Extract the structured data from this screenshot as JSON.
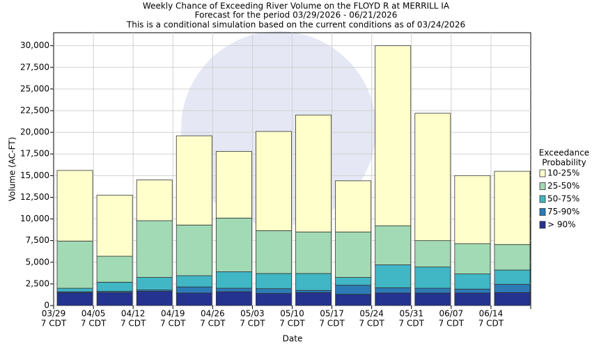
{
  "chart_data": {
    "type": "stacked_bar",
    "title": [
      "Weekly Chance of Exceeding River Volume on the FLOYD R at MERRILL IA",
      "Forecast for the period 03/29/2026 - 06/21/2026",
      "This is a conditional simulation based on the current conditions as of 03/24/2026"
    ],
    "x_label": "Date",
    "y_label": "Volume (AC-FT)",
    "categories": [
      "03/29",
      "04/05",
      "04/12",
      "04/19",
      "04/26",
      "05/03",
      "05/10",
      "05/17",
      "05/24",
      "05/31",
      "06/07",
      "06/14"
    ],
    "x_tick_sublabel": "7 CDT",
    "legend_title": [
      "Exceedance",
      "Probability"
    ],
    "series": [
      {
        "name": "> 90%",
        "color": "#24338f",
        "values": [
          1500,
          1500,
          1650,
          1450,
          1600,
          1400,
          1500,
          1300,
          1450,
          1450,
          1450,
          1500
        ]
      },
      {
        "name": "75-90%",
        "color": "#2c7bb6",
        "values": [
          100,
          150,
          150,
          700,
          400,
          550,
          250,
          1050,
          600,
          550,
          450,
          950
        ]
      },
      {
        "name": "50-75%",
        "color": "#41b6c4",
        "values": [
          400,
          1050,
          1450,
          1300,
          1900,
          1750,
          1950,
          900,
          2650,
          2450,
          1750,
          1650
        ]
      },
      {
        "name": "25-50%",
        "color": "#a1dab4",
        "values": [
          5450,
          3000,
          6550,
          5850,
          6200,
          4950,
          4800,
          5250,
          4500,
          3050,
          3500,
          2950
        ]
      },
      {
        "name": "10-25%",
        "color": "#ffffcc",
        "values": [
          8150,
          7050,
          4700,
          10300,
          7700,
          11450,
          13500,
          5900,
          20800,
          14700,
          7850,
          8450
        ]
      }
    ],
    "ylim": [
      0,
      31500
    ],
    "yticks": [
      0,
      {
        "value": 2500,
        "label": "2,500"
      },
      {
        "value": 5000,
        "label": "5,000"
      },
      {
        "value": 7500,
        "label": "7,500"
      },
      {
        "value": 10000,
        "label": "10,000"
      },
      {
        "value": 12500,
        "label": "12,500"
      },
      {
        "value": 15000,
        "label": "15,000"
      },
      {
        "value": 17500,
        "label": "17,500"
      },
      {
        "value": 20000,
        "label": "20,000"
      },
      {
        "value": 22500,
        "label": "22,500"
      },
      {
        "value": 25000,
        "label": "25,000"
      },
      {
        "value": 27500,
        "label": "27,500"
      },
      {
        "value": 30000,
        "label": "30,000"
      }
    ],
    "grid": true
  }
}
